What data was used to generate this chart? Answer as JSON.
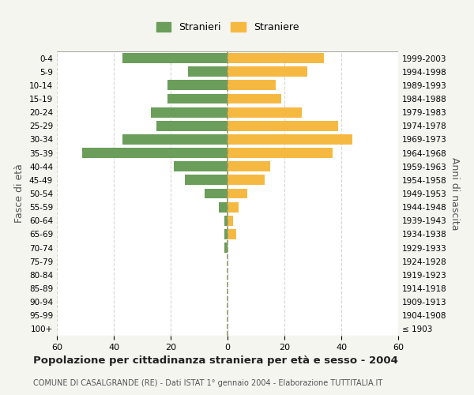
{
  "age_groups": [
    "100+",
    "95-99",
    "90-94",
    "85-89",
    "80-84",
    "75-79",
    "70-74",
    "65-69",
    "60-64",
    "55-59",
    "50-54",
    "45-49",
    "40-44",
    "35-39",
    "30-34",
    "25-29",
    "20-24",
    "15-19",
    "10-14",
    "5-9",
    "0-4"
  ],
  "birth_years": [
    "≤ 1903",
    "1904-1908",
    "1909-1913",
    "1914-1918",
    "1919-1923",
    "1924-1928",
    "1929-1933",
    "1934-1938",
    "1939-1943",
    "1944-1948",
    "1949-1953",
    "1954-1958",
    "1959-1963",
    "1964-1968",
    "1969-1973",
    "1974-1978",
    "1979-1983",
    "1984-1988",
    "1989-1993",
    "1994-1998",
    "1999-2003"
  ],
  "males": [
    0,
    0,
    0,
    0,
    0,
    0,
    1,
    1,
    1,
    3,
    8,
    15,
    19,
    51,
    37,
    25,
    27,
    21,
    21,
    14,
    37
  ],
  "females": [
    0,
    0,
    0,
    0,
    0,
    0,
    0,
    3,
    2,
    4,
    7,
    13,
    15,
    37,
    44,
    39,
    26,
    19,
    17,
    28,
    34
  ],
  "male_color": "#6a9e5a",
  "female_color": "#f5b942",
  "background_color": "#f5f5f0",
  "plot_bg_color": "#ffffff",
  "grid_color": "#cccccc",
  "title": "Popolazione per cittadinanza straniera per età e sesso - 2004",
  "subtitle": "COMUNE DI CASALGRANDE (RE) - Dati ISTAT 1° gennaio 2004 - Elaborazione TUTTITALIA.IT",
  "ylabel_left": "Fasce di età",
  "ylabel_right": "Anni di nascita",
  "legend_stranieri": "Stranieri",
  "legend_straniere": "Straniere",
  "xlim": 60
}
